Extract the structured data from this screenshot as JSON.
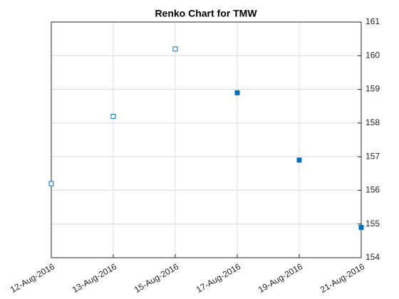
{
  "chart_data": {
    "type": "renko",
    "title": "Renko Chart for TMW",
    "categories": [
      "12-Aug-2016",
      "13-Aug-2016",
      "15-Aug-2016",
      "17-Aug-2016",
      "19-Aug-2016",
      "21-Aug-2016"
    ],
    "values": [
      156.2,
      158.2,
      160.2,
      158.9,
      156.9,
      154.9
    ],
    "marker_faces": [
      "open",
      "open",
      "open",
      "filled",
      "filled",
      "filled"
    ],
    "color": "#0072bd",
    "ylim": [
      154,
      161
    ],
    "yticks": [
      154,
      155,
      156,
      157,
      158,
      159,
      160,
      161
    ],
    "y_axis_side": "right",
    "grid": true
  }
}
